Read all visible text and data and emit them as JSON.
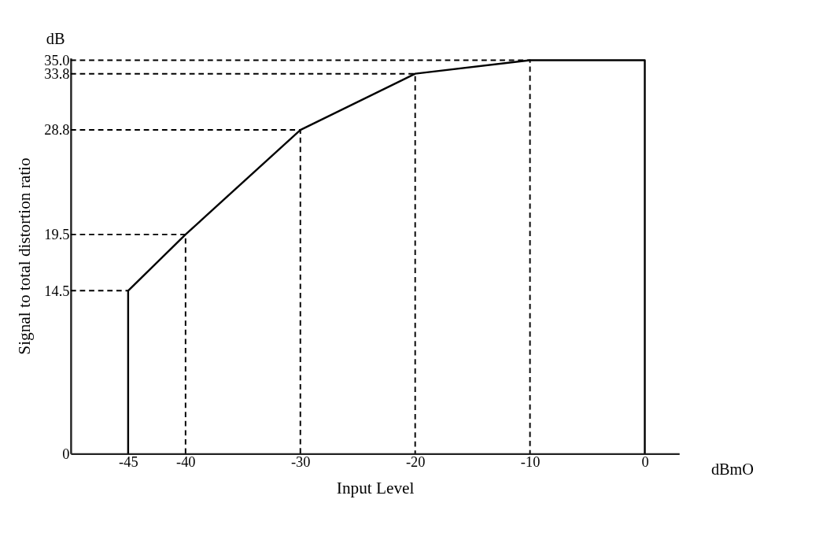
{
  "chart_data": {
    "type": "line",
    "xlabel": "Input Level",
    "ylabel": "Signal to total distortion ratio",
    "annotations": [
      "dB",
      "dBmO"
    ],
    "xlim": [
      -50,
      3
    ],
    "ylim": [
      0,
      35.2
    ],
    "xticks": [
      -45,
      -40,
      -30,
      -20,
      -10,
      0
    ],
    "yticks": [
      0,
      14.5,
      19.5,
      28.8,
      33.8,
      {
        "value": 35,
        "label": "35.0"
      }
    ],
    "grid": false,
    "marker": "none",
    "series": [
      {
        "color": "#000000",
        "line_style": "solid",
        "x": [
          -45,
          -45,
          -40,
          -30,
          -20,
          -10,
          0,
          0
        ],
        "values": [
          0,
          14.5,
          19.5,
          28.8,
          33.8,
          35,
          35,
          0
        ]
      },
      {
        "color": "#000000",
        "line_style": "dashed",
        "x": [
          -50,
          -45
        ],
        "values": [
          14.5,
          14.5
        ]
      },
      {
        "color": "#000000",
        "line_style": "dashed",
        "x": [
          -50,
          -40,
          -40
        ],
        "values": [
          19.5,
          19.5,
          0
        ]
      },
      {
        "color": "#000000",
        "line_style": "dashed",
        "x": [
          -50,
          -30,
          -30
        ],
        "values": [
          28.8,
          28.8,
          0
        ]
      },
      {
        "color": "#000000",
        "line_style": "dashed",
        "x": [
          -50,
          -20,
          -20
        ],
        "values": [
          33.8,
          33.8,
          0
        ]
      },
      {
        "color": "#000000",
        "line_style": "dashed",
        "x": [
          -50,
          -10,
          -10
        ],
        "values": [
          35,
          35,
          0
        ]
      }
    ]
  }
}
